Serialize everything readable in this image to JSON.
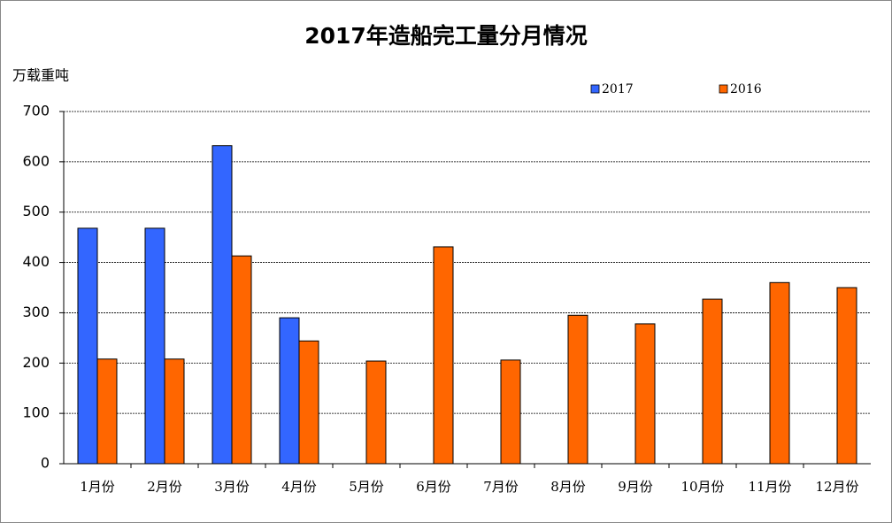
{
  "chart_data": {
    "type": "bar",
    "title": "2017年造船完工量分月情况",
    "y_label": "万载重吨",
    "categories": [
      "1月份",
      "2月份",
      "3月份",
      "4月份",
      "5月份",
      "6月份",
      "7月份",
      "8月份",
      "9月份",
      "10月份",
      "11月份",
      "12月份"
    ],
    "series": [
      {
        "name": "2017",
        "color": "#3366ff",
        "values": [
          468,
          468,
          632,
          290,
          null,
          null,
          null,
          null,
          null,
          null,
          null,
          null
        ]
      },
      {
        "name": "2016",
        "color": "#ff6600",
        "values": [
          208,
          208,
          413,
          244,
          204,
          431,
          206,
          295,
          278,
          327,
          360,
          350
        ]
      }
    ],
    "ylim": [
      0,
      700
    ],
    "yticks": [
      0,
      100,
      200,
      300,
      400,
      500,
      600,
      700
    ],
    "grid": true
  }
}
